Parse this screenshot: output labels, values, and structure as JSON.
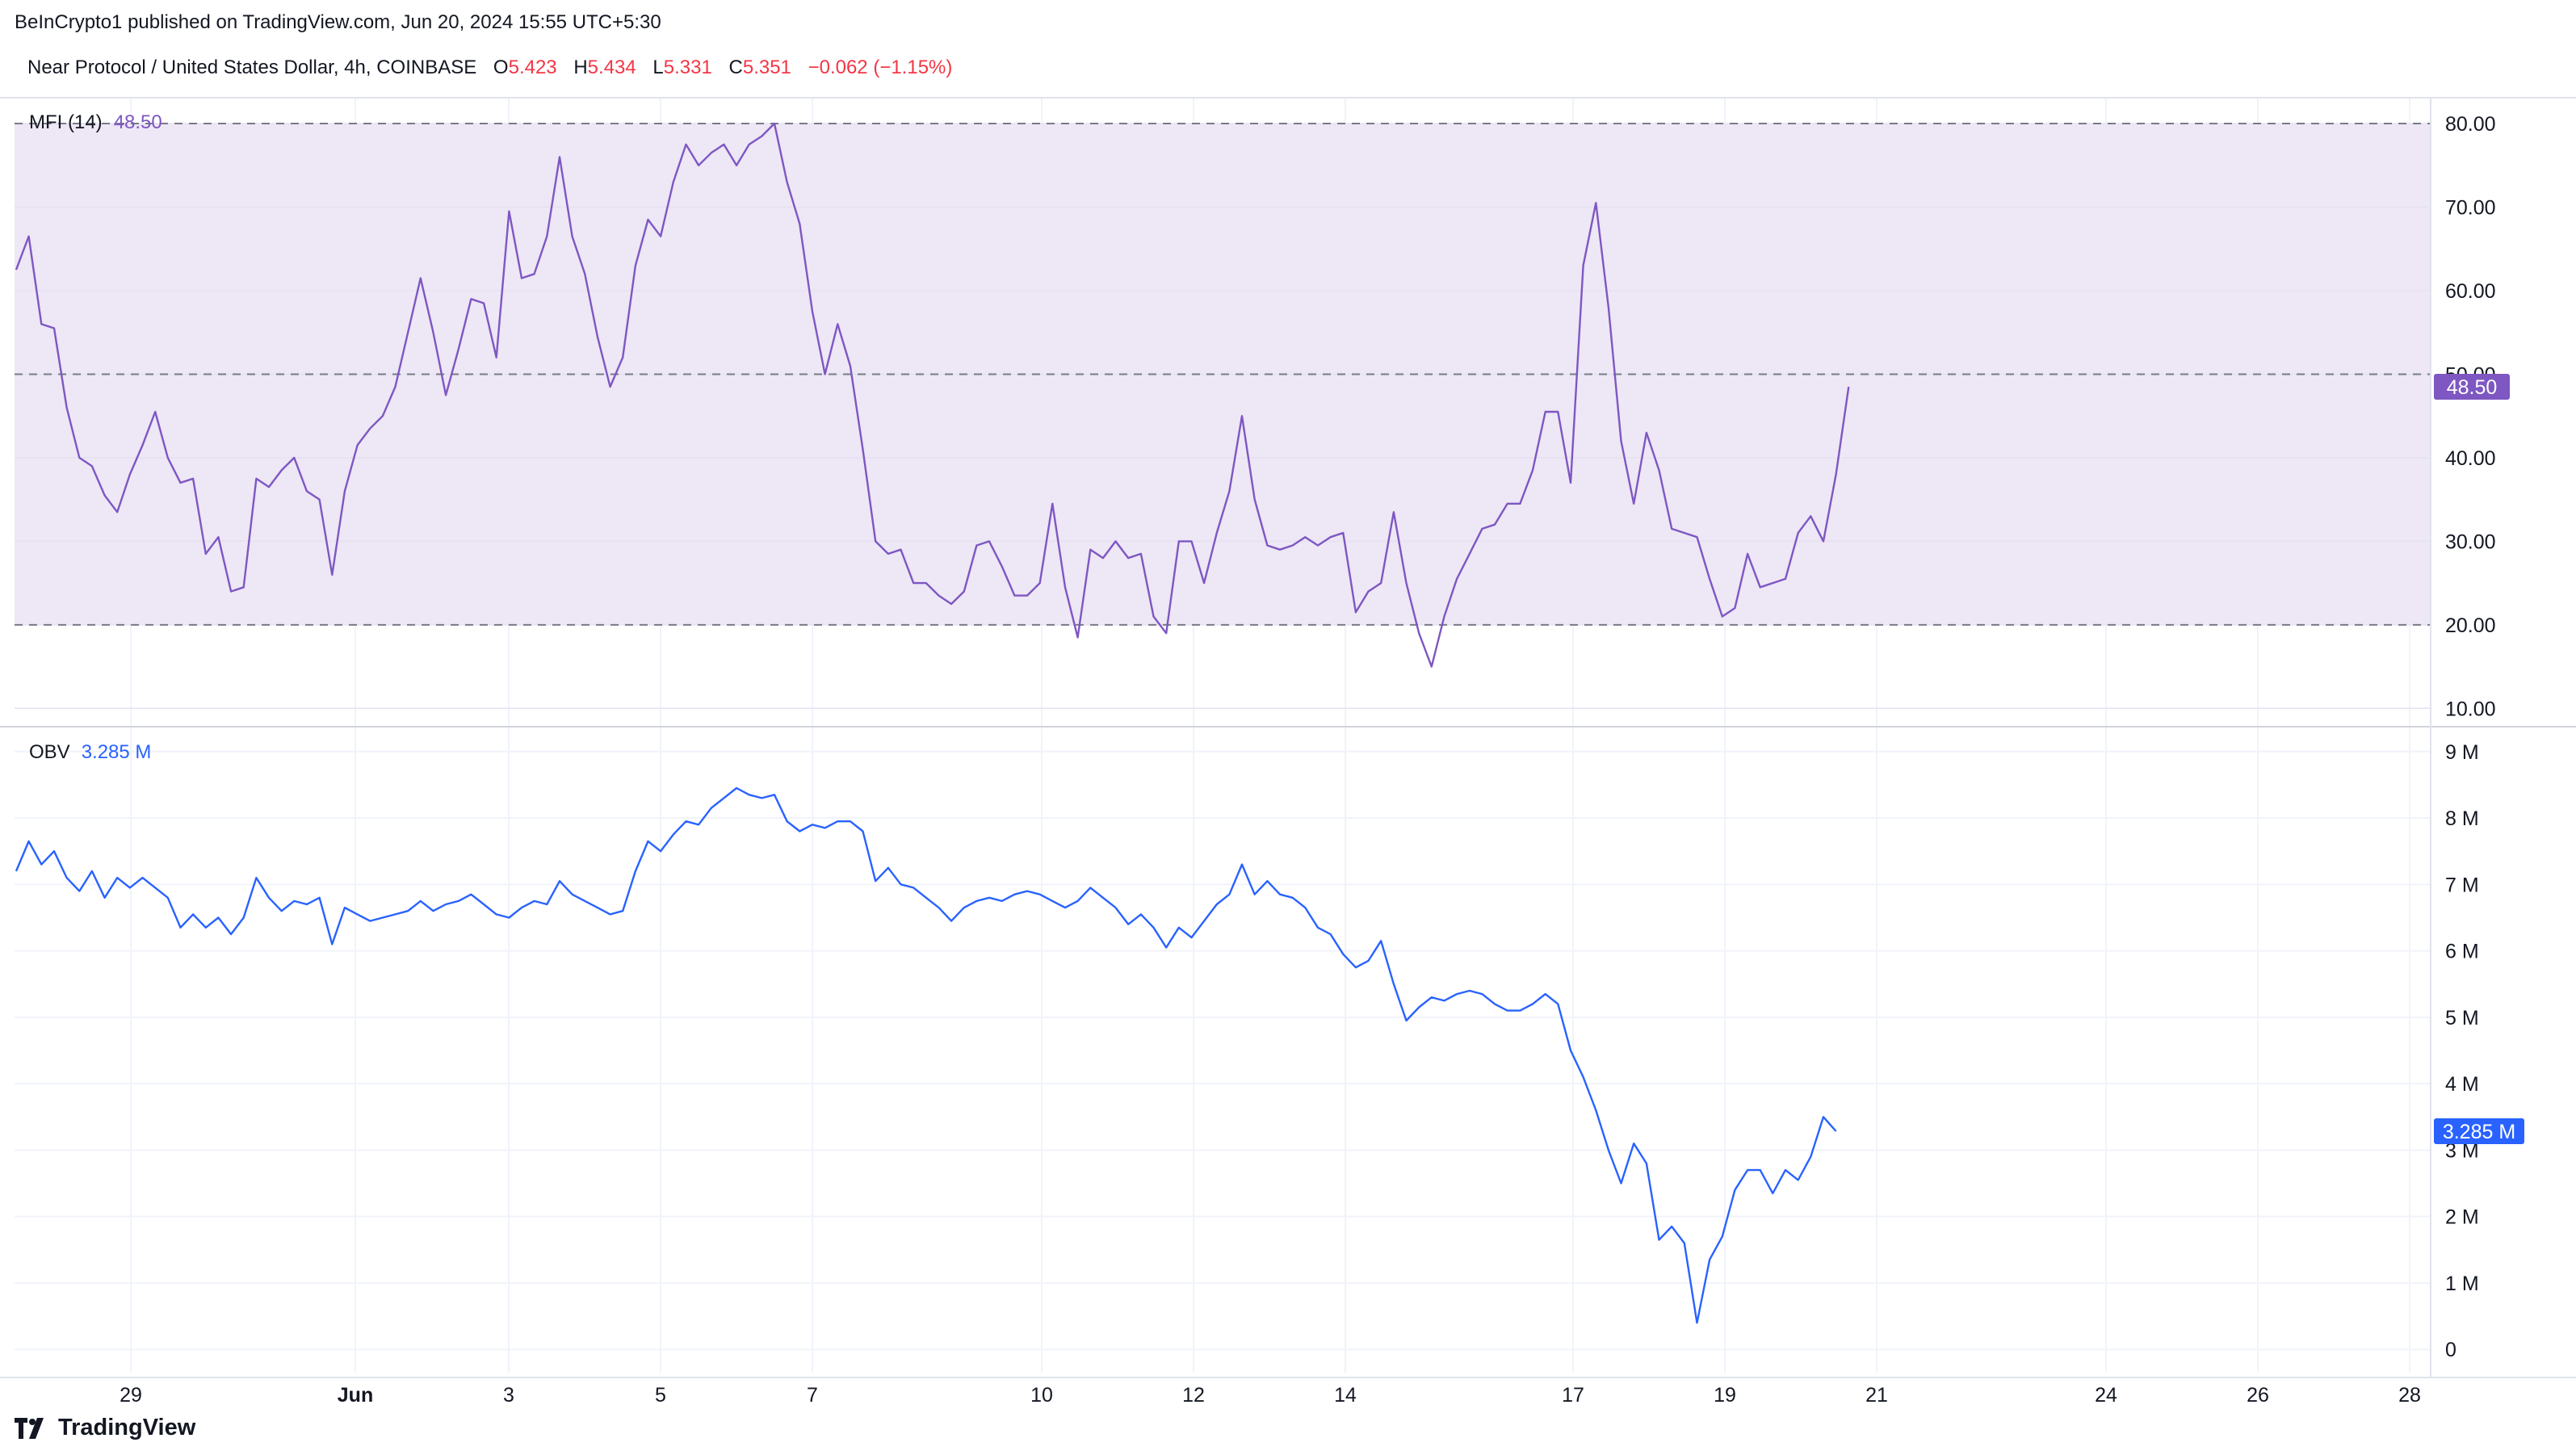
{
  "header": {
    "published": "BeInCrypto1 published on TradingView.com, Jun 20, 2024 15:55 UTC+5:30",
    "symbol": "Near Protocol / United States Dollar, 4h, COINBASE",
    "open_label": "O",
    "open": "5.423",
    "high_label": "H",
    "high": "5.434",
    "low_label": "L",
    "low": "5.331",
    "close_label": "C",
    "close": "5.351",
    "change": "−0.062 (−1.15%)"
  },
  "footer": {
    "brand": "TradingView",
    "logo_icon": "tradingview-logo-icon"
  },
  "colors": {
    "mfi_line": "#7e57c2",
    "mfi_band": "#ede7f6",
    "obv_line": "#2962ff",
    "grid": "#f0f3fa",
    "down": "#f23645"
  },
  "chart_data": [
    {
      "type": "line",
      "title": "MFI (14)",
      "last_value": "48.50",
      "ylim": [
        8,
        83
      ],
      "ytick_labels": [
        "10.00",
        "20.00",
        "30.00",
        "40.00",
        "50.00",
        "60.00",
        "70.00",
        "80.00"
      ],
      "band": {
        "upper": 80,
        "lower": 20,
        "middle": 50
      },
      "x_tick_labels": [
        "29",
        "Jun",
        "3",
        "5",
        "7",
        "10",
        "12",
        "14",
        "17",
        "19",
        "21",
        "24",
        "26",
        "28"
      ],
      "series": [
        {
          "values": [
            62.5,
            66.5,
            56,
            55.5,
            46,
            40,
            39,
            35.5,
            33.5,
            38,
            41.5,
            45.5,
            40,
            37,
            37.5,
            28.5,
            30.5,
            24,
            24.5,
            37.5,
            36.5,
            38.5,
            40,
            36,
            35,
            26,
            36,
            41.5,
            43.5,
            45,
            48.5,
            55,
            61.5,
            55,
            47.5,
            53,
            59,
            58.5,
            52,
            69.5,
            61.5,
            62,
            66.5,
            76,
            66.5,
            62,
            54.5,
            48.5,
            52,
            63,
            68.5,
            66.5,
            73,
            77.5,
            75,
            76.5,
            77.5,
            75,
            77.5,
            78.5,
            80,
            73,
            68,
            57.5,
            50,
            56,
            51,
            41,
            30,
            28.5,
            29,
            25,
            25,
            23.5,
            22.5,
            24,
            29.5,
            30,
            27,
            23.5,
            23.5,
            25,
            34.5,
            24.5,
            18.5,
            29,
            28,
            30,
            28,
            28.5,
            21,
            19,
            30,
            30,
            25,
            31,
            36,
            45,
            35,
            29.5,
            29,
            29.5,
            30.5,
            29.5,
            30.5,
            31,
            21.5,
            24,
            25,
            33.5,
            25,
            19,
            15,
            21,
            25.5,
            28.5,
            31.5,
            32,
            34.5,
            34.5,
            38.5,
            45.5,
            45.5,
            37,
            63,
            70.5,
            58,
            42,
            34.5,
            43,
            38.5,
            31.5,
            31,
            30.5,
            25.5,
            21,
            22,
            28.5,
            24.5,
            25,
            25.5,
            31,
            33,
            30,
            38,
            48.5
          ]
        }
      ]
    },
    {
      "type": "line",
      "title": "OBV",
      "last_value": "3.285 M",
      "ylim": [
        -0.35,
        9.35
      ],
      "ytick_labels": [
        "0",
        "1 M",
        "2 M",
        "3 M",
        "4 M",
        "5 M",
        "6 M",
        "7 M",
        "8 M",
        "9 M"
      ],
      "x_tick_labels": [
        "29",
        "Jun",
        "3",
        "5",
        "7",
        "10",
        "12",
        "14",
        "17",
        "19",
        "21",
        "24",
        "26",
        "28"
      ],
      "series": [
        {
          "values": [
            7.2,
            7.65,
            7.3,
            7.5,
            7.1,
            6.9,
            7.2,
            6.8,
            7.1,
            6.95,
            7.1,
            6.95,
            6.8,
            6.35,
            6.55,
            6.35,
            6.5,
            6.25,
            6.5,
            7.1,
            6.8,
            6.6,
            6.75,
            6.7,
            6.8,
            6.1,
            6.65,
            6.55,
            6.45,
            6.5,
            6.55,
            6.6,
            6.75,
            6.6,
            6.7,
            6.75,
            6.85,
            6.7,
            6.55,
            6.5,
            6.65,
            6.75,
            6.7,
            7.05,
            6.85,
            6.75,
            6.65,
            6.55,
            6.6,
            7.2,
            7.65,
            7.5,
            7.75,
            7.95,
            7.9,
            8.15,
            8.3,
            8.45,
            8.35,
            8.3,
            8.35,
            7.95,
            7.8,
            7.9,
            7.85,
            7.95,
            7.95,
            7.8,
            7.05,
            7.25,
            7.0,
            6.95,
            6.8,
            6.65,
            6.45,
            6.65,
            6.75,
            6.8,
            6.75,
            6.85,
            6.9,
            6.85,
            6.75,
            6.65,
            6.75,
            6.95,
            6.8,
            6.65,
            6.4,
            6.55,
            6.35,
            6.05,
            6.35,
            6.2,
            6.45,
            6.7,
            6.85,
            7.3,
            6.85,
            7.05,
            6.85,
            6.8,
            6.65,
            6.35,
            6.25,
            5.95,
            5.75,
            5.85,
            6.15,
            5.5,
            4.95,
            5.15,
            5.3,
            5.25,
            5.35,
            5.4,
            5.35,
            5.2,
            5.1,
            5.1,
            5.2,
            5.35,
            5.2,
            4.5,
            4.1,
            3.6,
            3.0,
            2.5,
            3.1,
            2.8,
            1.65,
            1.85,
            1.6,
            0.4,
            1.35,
            1.7,
            2.4,
            2.7,
            2.7,
            2.35,
            2.7,
            2.55,
            2.9,
            3.5,
            3.285
          ]
        }
      ]
    }
  ]
}
